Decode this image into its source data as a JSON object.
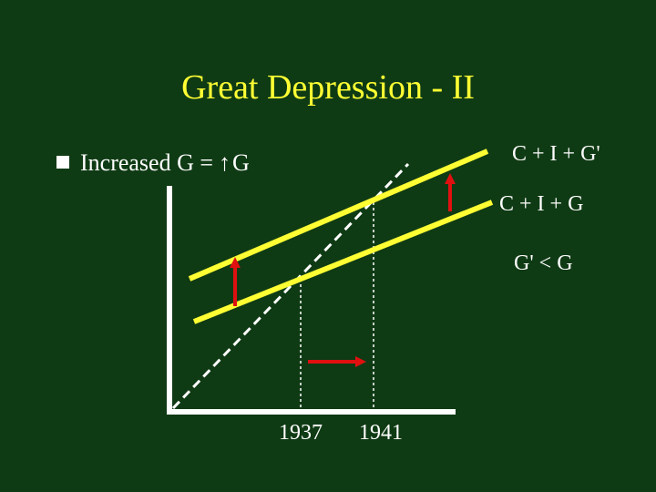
{
  "slide": {
    "title": "Great Depression - II",
    "bullet": {
      "text_prefix": "Increased G = ",
      "arrow_glyph": "↑",
      "text_suffix": "G",
      "marker_icon": "square-bullet-icon"
    }
  },
  "diagram": {
    "line_labels": {
      "upper": "C + I + G'",
      "lower": "C + I + G",
      "note": "G' < G"
    },
    "x_markers": [
      "1937",
      "1941"
    ],
    "colors": {
      "background": "#0f3b14",
      "title": "#ffff33",
      "lines": "#ffff33",
      "axes": "#ffffff",
      "arrows": "#e01010"
    }
  }
}
